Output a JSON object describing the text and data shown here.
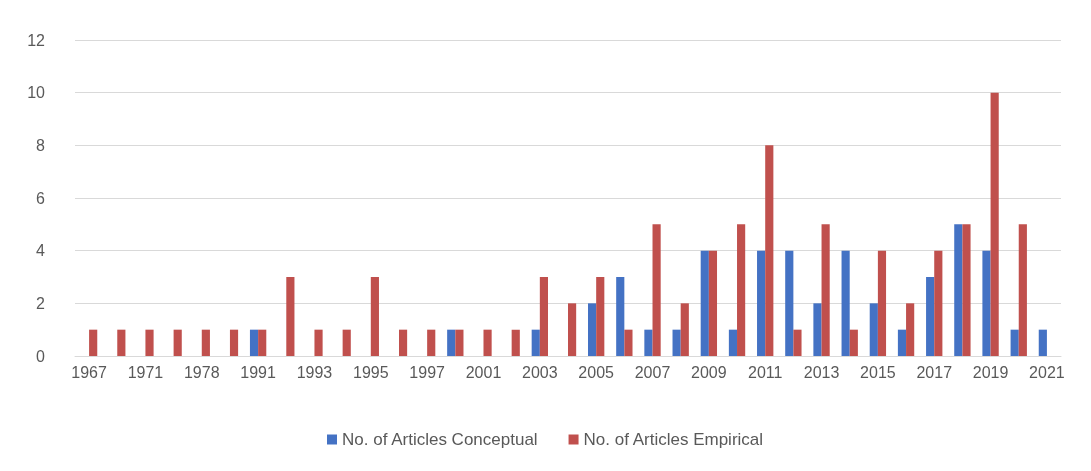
{
  "chart_data": {
    "type": "bar",
    "categories": [
      "1967",
      null,
      "1971",
      null,
      "1978",
      null,
      "1991",
      null,
      "1993",
      null,
      "1995",
      null,
      "1997",
      null,
      "2001",
      null,
      "2003",
      null,
      "2005",
      null,
      "2007",
      null,
      "2009",
      null,
      "2011",
      null,
      "2013",
      null,
      "2015",
      null,
      "2017",
      null,
      "2019",
      null,
      "2021"
    ],
    "series": [
      {
        "name": "No. of Articles Conceptual",
        "color": "#4472c4",
        "values": [
          0,
          0,
          0,
          0,
          0,
          0,
          1,
          0,
          0,
          0,
          0,
          0,
          0,
          1,
          0,
          0,
          1,
          0,
          2,
          3,
          1,
          1,
          4,
          1,
          4,
          4,
          2,
          4,
          2,
          1,
          3,
          5,
          4,
          1,
          1
        ]
      },
      {
        "name": "No. of Articles Empirical",
        "color": "#c0504d",
        "values": [
          1,
          1,
          1,
          1,
          1,
          1,
          1,
          3,
          1,
          1,
          3,
          1,
          1,
          1,
          1,
          1,
          3,
          2,
          3,
          1,
          5,
          2,
          4,
          5,
          8,
          1,
          5,
          1,
          4,
          2,
          4,
          5,
          10,
          5,
          0
        ]
      }
    ],
    "ylim": [
      0,
      12
    ],
    "yticks": [
      0,
      2,
      4,
      6,
      8,
      10,
      12
    ],
    "grid": "y",
    "legend": "bottom"
  }
}
